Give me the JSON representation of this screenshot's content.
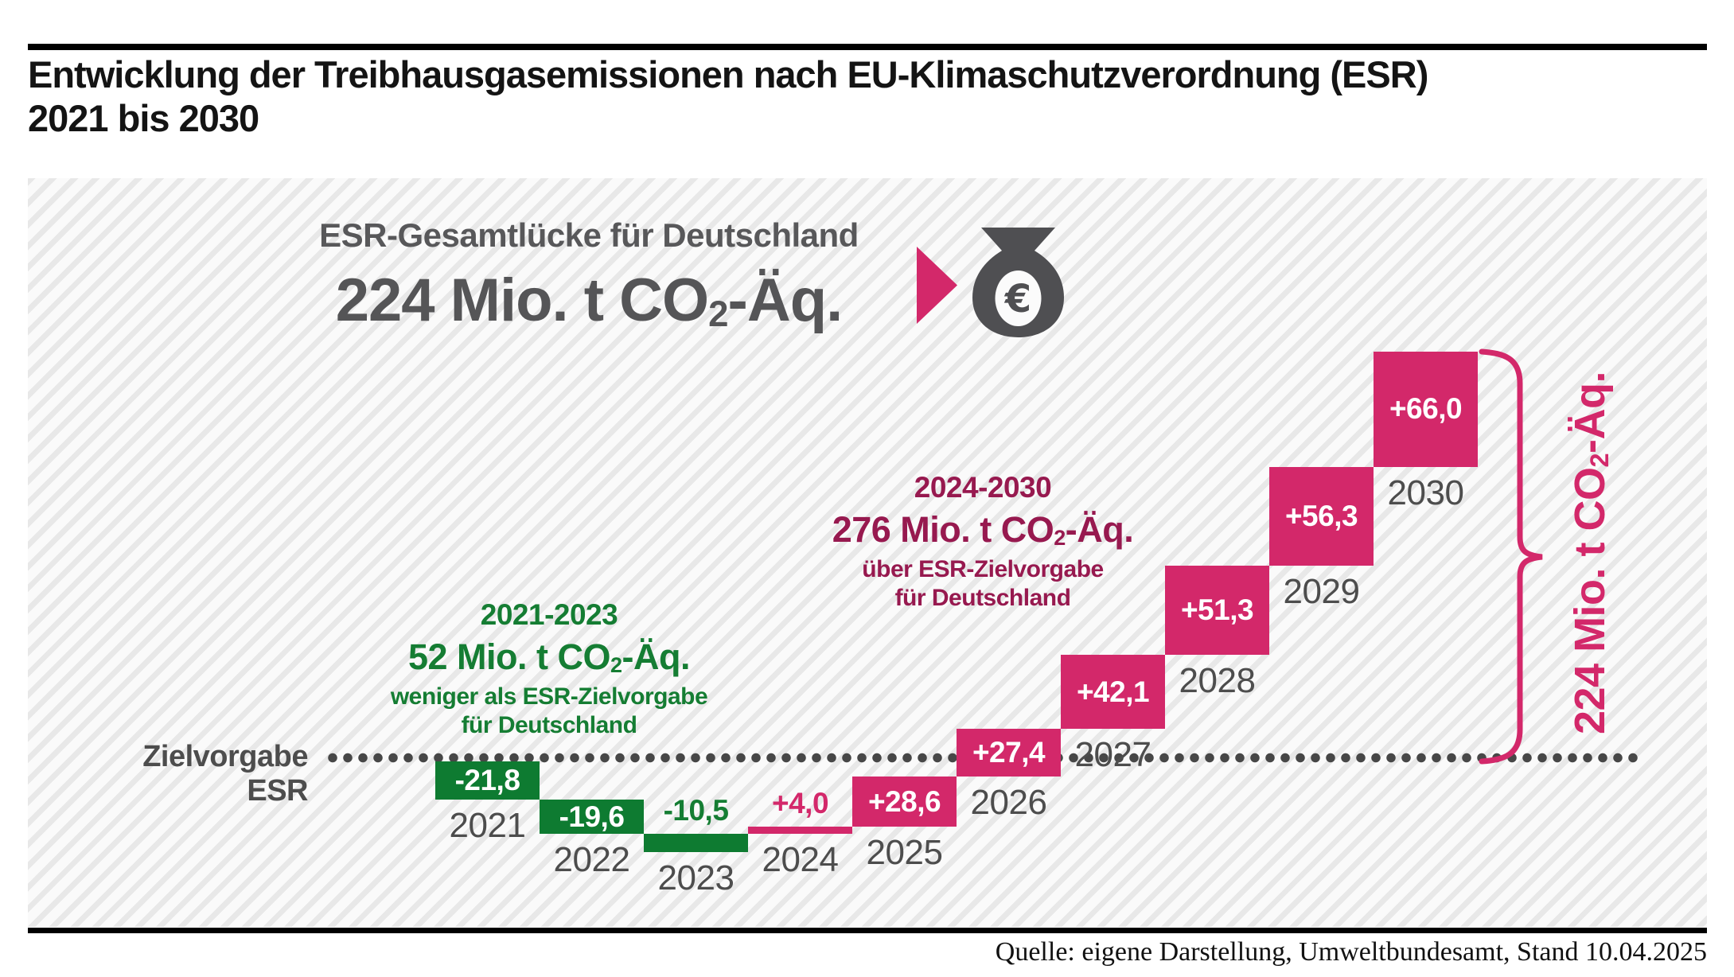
{
  "page": {
    "title_line1": "Entwicklung der Treibhausgasemissionen nach EU-Klimaschutzverordnung (ESR)",
    "title_line2": "2021 bis 2030",
    "source": "Quelle: eigene Darstellung, Umweltbundesamt, Stand 10.04.2025"
  },
  "headline": {
    "label": "ESR-Gesamtlücke für Deutschland",
    "value": "224 Mio. t CO₂-Äq.",
    "arrow_icon": "right-arrow-triangle",
    "moneybag_icon": "money-bag-with-euro-sign",
    "euro_symbol": "€"
  },
  "annotations": {
    "green": {
      "period": "2021-2023",
      "value": "52 Mio. t CO₂-Äq.",
      "line1": "weniger als ESR-Zielvorgabe",
      "line2": "für Deutschland"
    },
    "pink": {
      "period": "2024-2030",
      "value": "276 Mio. t CO₂-Äq.",
      "line1": "über ESR-Zielvorgabe",
      "line2": "für Deutschland"
    }
  },
  "target_line": {
    "label": "Zielvorgabe ESR"
  },
  "bracket": {
    "label": "224 Mio. t CO₂-Äq."
  },
  "colors": {
    "green_bar": "#0e7b31",
    "green_text": "#157d33",
    "pink_bar": "#d3286a",
    "pink_text": "#d3286a",
    "dark_magenta_text": "#97194f",
    "gray_text": "#4d4d4d",
    "headline_gray": "#58585a",
    "dotted_line": "#474747",
    "black": "#000000"
  },
  "chart_data": {
    "type": "bar",
    "subtype": "waterfall",
    "title": "Entwicklung der Treibhausgasemissionen nach EU-Klimaschutzverordnung (ESR) 2021 bis 2030",
    "unit": "Mio. t CO₂-Äq.",
    "baseline_label": "Zielvorgabe ESR",
    "baseline_value": 0,
    "categories": [
      "2021",
      "2022",
      "2023",
      "2024",
      "2025",
      "2026",
      "2027",
      "2028",
      "2029",
      "2030"
    ],
    "values": [
      -21.8,
      -19.6,
      -10.5,
      4.0,
      28.6,
      27.4,
      42.1,
      51.3,
      56.3,
      66.0
    ],
    "value_labels": [
      "-21,8",
      "-19,6",
      "-10,5",
      "+4,0",
      "+28,6",
      "+27,4",
      "+42,1",
      "+51,3",
      "+56,3",
      "+66,0"
    ],
    "negative_color": "#0e7b31",
    "positive_color": "#d3286a",
    "total_gap_label": "224 Mio. t CO₂-Äq.",
    "sum_2021_2023_below_target": 52,
    "sum_2024_2030_above_target": 276,
    "legend": "none",
    "grid": "off"
  }
}
